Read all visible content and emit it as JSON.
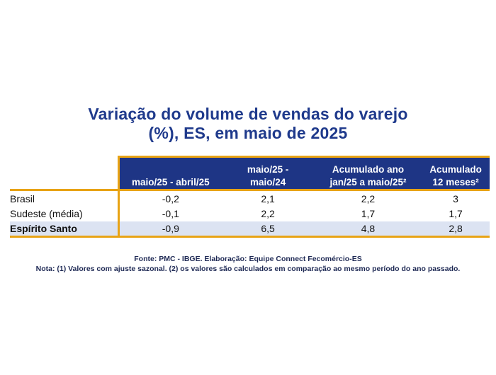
{
  "title": {
    "line1": "Variação do volume de vendas do varejo",
    "line2": "(%), ES, em maio de 2025"
  },
  "table": {
    "columns": [
      {
        "line1": "",
        "line2": "maio/25 - abril/25"
      },
      {
        "line1": "maio/25 -",
        "line2": "maio/24"
      },
      {
        "line1": "Acumulado ano",
        "line2": "jan/25 a maio/25²"
      },
      {
        "line1": "Acumulado",
        "line2": "12 meses²"
      }
    ],
    "rows": [
      {
        "label": "Brasil",
        "values": [
          "-0,2",
          "2,1",
          "2,2",
          "3"
        ]
      },
      {
        "label": "Sudeste (média)",
        "values": [
          "-0,1",
          "2,2",
          "1,7",
          "1,7"
        ]
      },
      {
        "label": "Espírito Santo",
        "values": [
          "-0,9",
          "6,5",
          "4,8",
          "2,8"
        ]
      }
    ]
  },
  "footer": {
    "source": "Fonte: PMC - IBGE.  Elaboração: Equipe Connect Fecomércio-ES",
    "note": "Nota: (1) Valores com ajuste sazonal. (2) os valores são calculados em comparação ao mesmo período do ano passado."
  },
  "colors": {
    "title": "#1f3a8c",
    "header_bg": "#1e3585",
    "accent_border": "#e8a315",
    "highlight_row": "#dce3f2"
  }
}
